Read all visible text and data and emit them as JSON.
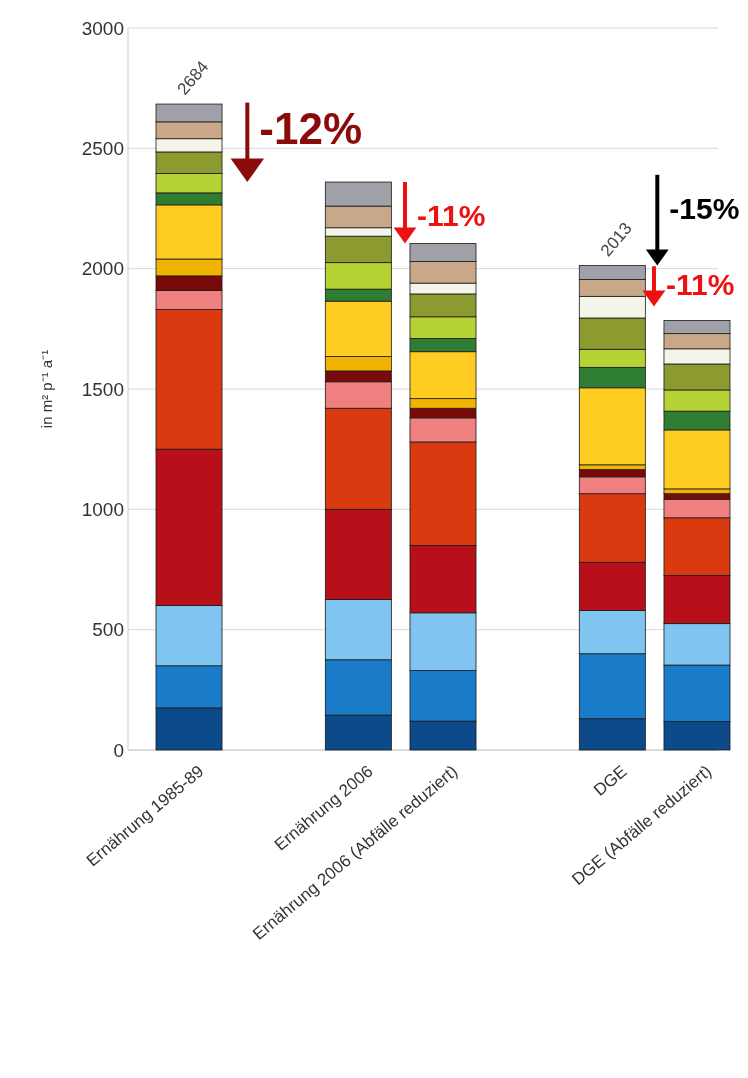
{
  "chart_data": {
    "type": "bar",
    "stacked": true,
    "ylabel": "in m² p⁻¹ a⁻¹",
    "categories": [
      "Ernährung 1985-89",
      null,
      "Ernährung 2006",
      "Ernährung 2006 (Abfälle reduziert)",
      null,
      "DGE",
      "DGE (Abfälle reduziert)"
    ],
    "ylim": [
      0,
      3000
    ],
    "yticks": [
      0,
      500,
      1000,
      1500,
      2000,
      2500,
      3000
    ],
    "grid": "y",
    "series": [
      {
        "color": "#0d4a8a",
        "values": [
          175,
          null,
          145,
          120,
          null,
          130,
          118
        ]
      },
      {
        "color": "#1a7bc8",
        "values": [
          175,
          null,
          230,
          210,
          null,
          270,
          235
        ]
      },
      {
        "color": "#80c4f0",
        "values": [
          250,
          null,
          250,
          240,
          null,
          180,
          172
        ]
      },
      {
        "color": "#b8101a",
        "values": [
          650,
          null,
          375,
          280,
          null,
          200,
          200
        ]
      },
      {
        "color": "#d93a10",
        "values": [
          580,
          null,
          420,
          430,
          null,
          285,
          240
        ]
      },
      {
        "color": "#f08080",
        "values": [
          80,
          null,
          110,
          100,
          null,
          70,
          77
        ]
      },
      {
        "color": "#7a0a0a",
        "values": [
          60,
          null,
          45,
          40,
          null,
          30,
          23
        ]
      },
      {
        "color": "#f0b400",
        "values": [
          70,
          null,
          60,
          40,
          null,
          20,
          20
        ]
      },
      {
        "color": "#ffcc22",
        "values": [
          225,
          null,
          230,
          195,
          null,
          320,
          245
        ]
      },
      {
        "color": "#2e7d32",
        "values": [
          50,
          null,
          50,
          55,
          null,
          85,
          78
        ]
      },
      {
        "color": "#b5d334",
        "values": [
          80,
          null,
          110,
          90,
          null,
          75,
          88
        ]
      },
      {
        "color": "#8c9a30",
        "values": [
          90,
          null,
          110,
          95,
          null,
          130,
          108
        ]
      },
      {
        "color": "#f4f4ea",
        "values": [
          55,
          null,
          35,
          45,
          null,
          90,
          63
        ]
      },
      {
        "color": "#c8a888",
        "values": [
          70,
          null,
          90,
          90,
          null,
          70,
          63
        ]
      },
      {
        "color": "#a0a0a8",
        "values": [
          74,
          null,
          100,
          75,
          null,
          58,
          55
        ]
      }
    ],
    "totals": [
      "2684",
      null,
      null,
      null,
      null,
      "2013",
      null
    ],
    "annotations": [
      {
        "text": "-12%",
        "x": "Ernährung 2006",
        "y": 2360
      },
      {
        "text": "-11%",
        "x": "Ernährung 2006 (Abfälle reduziert)",
        "y": 2105
      },
      {
        "text": "-15%",
        "x": "DGE",
        "y": 2013
      },
      {
        "text": "-11%",
        "x": "DGE (Abfälle reduziert)",
        "y": 1785
      }
    ]
  }
}
